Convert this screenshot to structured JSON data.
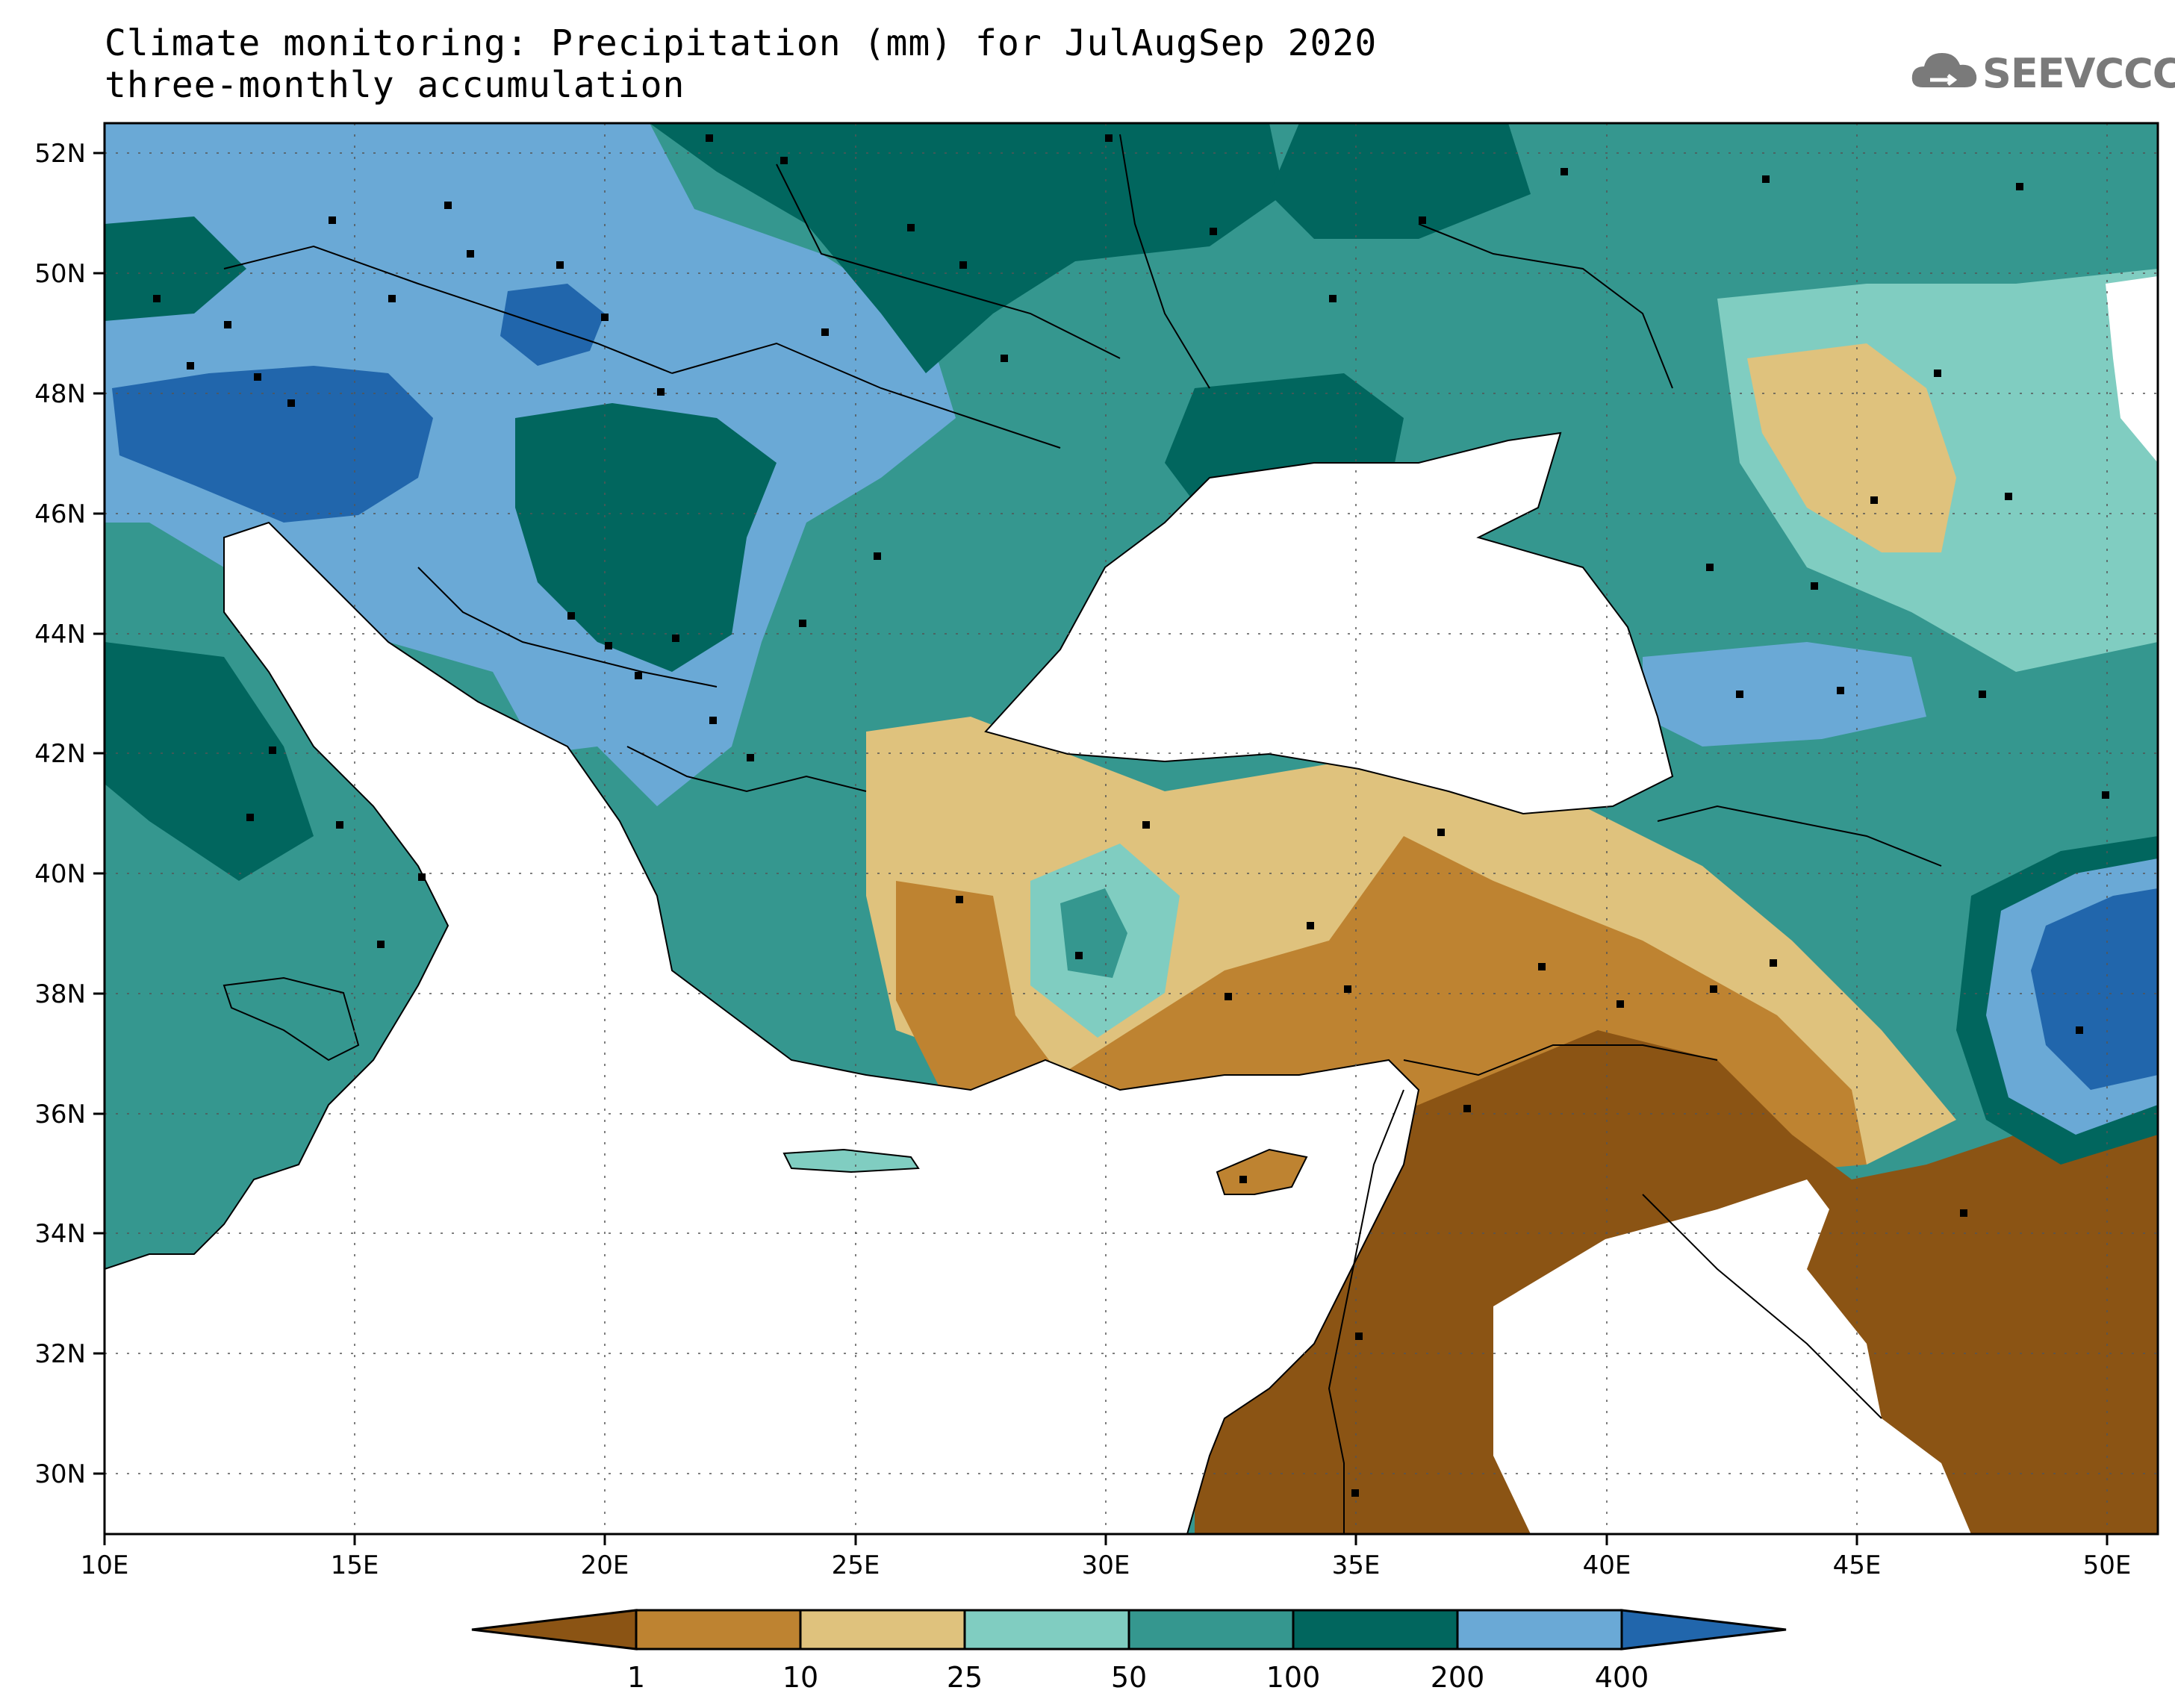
{
  "title": {
    "line1": "Climate monitoring: Precipitation (mm) for JulAugSep 2020",
    "line2": "three-monthly accumulation"
  },
  "logo": {
    "text": "SEEVCCC",
    "icon": "cloud-icon"
  },
  "axes": {
    "x_ticks": [
      "10E",
      "15E",
      "20E",
      "25E",
      "30E",
      "35E",
      "40E",
      "45E",
      "50E"
    ],
    "y_ticks": [
      "52N",
      "50N",
      "48N",
      "46N",
      "44N",
      "42N",
      "40N",
      "38N",
      "36N",
      "34N",
      "32N",
      "30N"
    ],
    "lon_range": [
      10,
      51
    ],
    "lat_range": [
      29,
      52.5
    ]
  },
  "colorbar": {
    "labels": [
      "1",
      "10",
      "25",
      "50",
      "100",
      "200",
      "400"
    ],
    "colors": [
      "#8b5414",
      "#be8331",
      "#dfc27d",
      "#80cdc1",
      "#35978f",
      "#01665e",
      "#6aa9d6",
      "#2166ac"
    ],
    "extend": "both"
  }
}
